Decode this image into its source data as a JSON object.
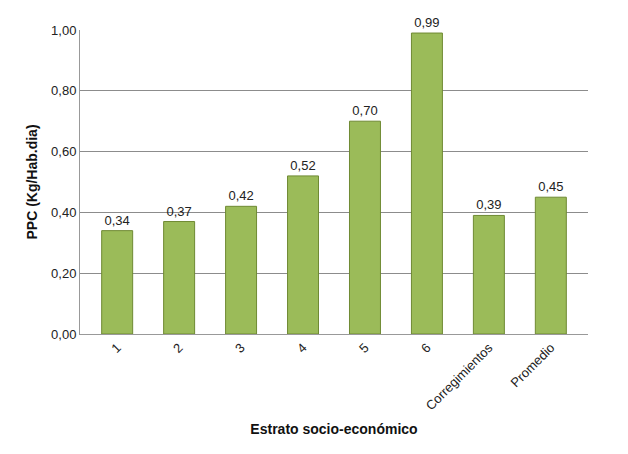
{
  "chart_data": {
    "type": "bar",
    "x_label": "Estrato socio-económico",
    "y_label": "PPC (Kg/Hab.dia)",
    "categories": [
      "1",
      "2",
      "3",
      "4",
      "5",
      "6",
      "Corregimientos",
      "Promedio"
    ],
    "values": [
      0.34,
      0.37,
      0.42,
      0.52,
      0.7,
      0.99,
      0.39,
      0.45
    ],
    "value_labels": [
      "0,34",
      "0,37",
      "0,42",
      "0,52",
      "0,70",
      "0,99",
      "0,39",
      "0,45"
    ],
    "color": "#9bbb59",
    "ylim": [
      0,
      1
    ],
    "yticks": [
      {
        "value": 0,
        "label": "0,00"
      },
      {
        "value": 0.2,
        "label": "0,20"
      },
      {
        "value": 0.4,
        "label": "0,40"
      },
      {
        "value": 0.6,
        "label": "0,60"
      },
      {
        "value": 0.8,
        "label": "0,80"
      },
      {
        "value": 1,
        "label": "1,00"
      }
    ],
    "grid": true,
    "data_labels": true
  }
}
